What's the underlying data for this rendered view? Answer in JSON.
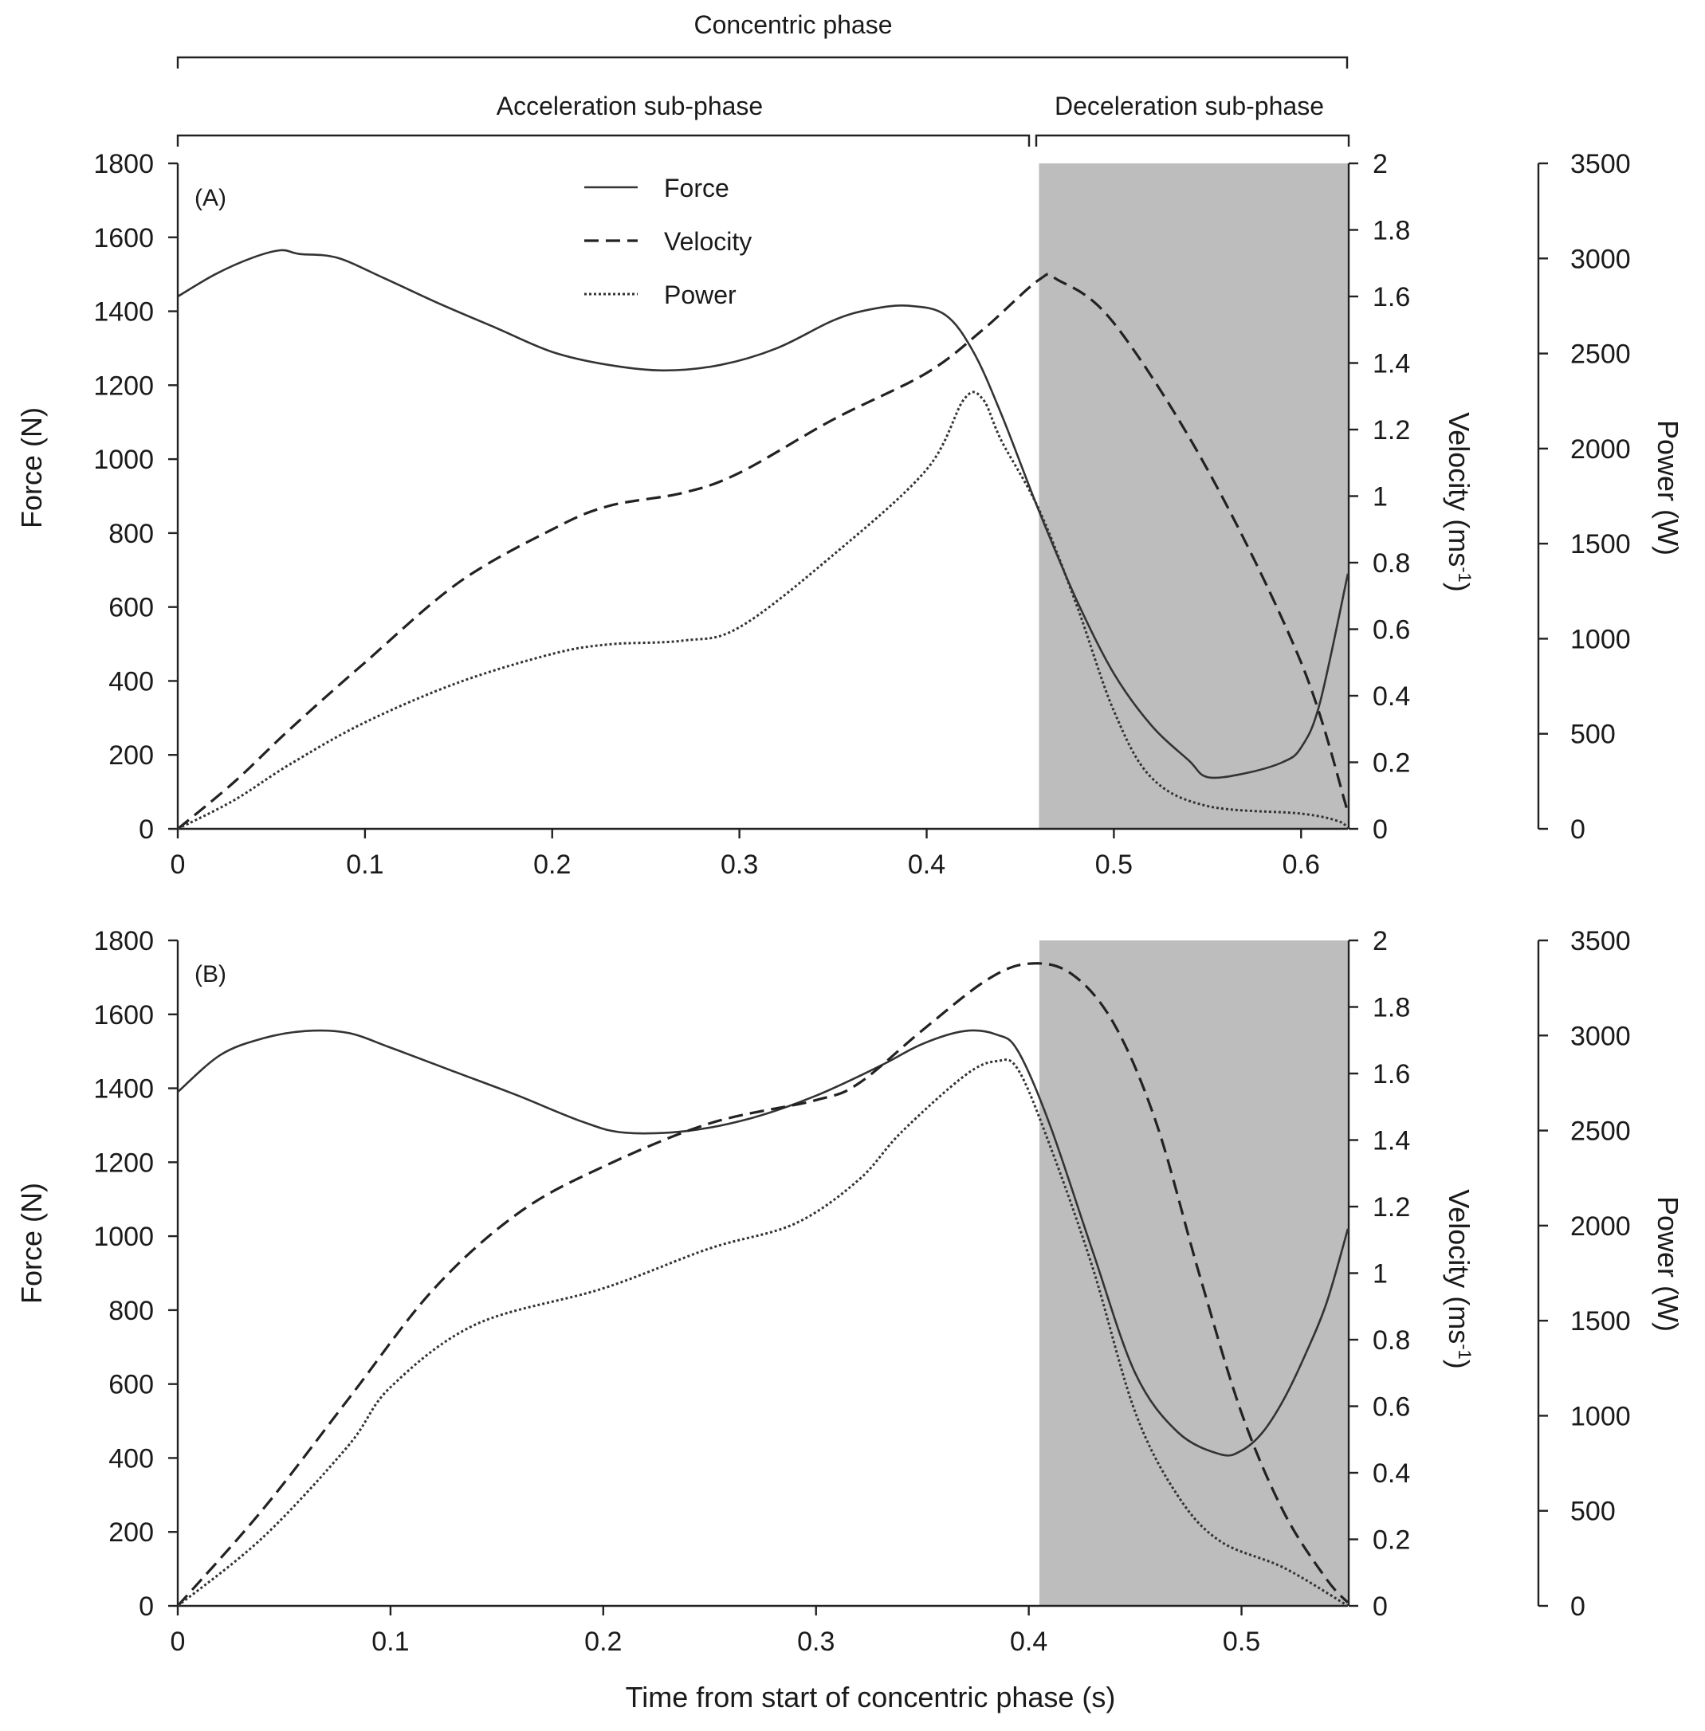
{
  "phases": {
    "concentric": "Concentric phase",
    "acceleration": "Acceleration sub-phase",
    "deceleration": "Deceleration sub-phase"
  },
  "legend": [
    {
      "name": "Force",
      "style": "solid"
    },
    {
      "name": "Velocity",
      "style": "dashed"
    },
    {
      "name": "Power",
      "style": "dotted"
    }
  ],
  "xlabel": "Time from start of concentric phase (s)",
  "ylabel_force": "Force (N)",
  "ylabel_velocity_main": "Velocity (ms",
  "ylabel_velocity_sup": "-1",
  "ylabel_velocity_end": ")",
  "ylabel_power": "Power (W)",
  "colors": {
    "shade": "#bdbdbd",
    "line": "#222222"
  },
  "chart_data": [
    {
      "type": "line",
      "panel": "(A)",
      "xlim": [
        0,
        0.625
      ],
      "xticks": [
        0,
        0.1,
        0.2,
        0.3,
        0.4,
        0.5,
        0.6
      ],
      "xtick_labels": [
        "0",
        "0.1",
        "0.2",
        "0.3",
        "0.4",
        "0.5",
        "0.6"
      ],
      "ylim_force": [
        0,
        1800
      ],
      "yticks_force": [
        0,
        200,
        400,
        600,
        800,
        1000,
        1200,
        1400,
        1600,
        1800
      ],
      "ylim_velocity": [
        0,
        2
      ],
      "yticks_velocity": [
        "0",
        "0.2",
        "0.4",
        "0.6",
        "0.8",
        "1",
        "1.2",
        "1.4",
        "1.6",
        "1.8",
        "2"
      ],
      "ylim_power": [
        0,
        3500
      ],
      "yticks_power": [
        0,
        500,
        1000,
        1500,
        2000,
        2500,
        3000,
        3500
      ],
      "deceleration_start": 0.46,
      "series": [
        {
          "name": "Force",
          "axis": "force",
          "x": [
            0,
            0.02,
            0.04,
            0.055,
            0.065,
            0.085,
            0.11,
            0.14,
            0.17,
            0.2,
            0.23,
            0.26,
            0.29,
            0.32,
            0.35,
            0.37,
            0.39,
            0.41,
            0.425,
            0.44,
            0.46,
            0.48,
            0.5,
            0.52,
            0.54,
            0.55,
            0.57,
            0.59,
            0.6,
            0.61,
            0.625
          ],
          "y": [
            1440,
            1500,
            1545,
            1565,
            1555,
            1545,
            1490,
            1420,
            1355,
            1290,
            1255,
            1240,
            1255,
            1300,
            1375,
            1405,
            1415,
            1390,
            1290,
            1120,
            860,
            620,
            420,
            280,
            185,
            140,
            150,
            180,
            220,
            340,
            690
          ]
        },
        {
          "name": "Velocity",
          "axis": "velocity",
          "x": [
            0,
            0.03,
            0.06,
            0.1,
            0.15,
            0.2,
            0.23,
            0.27,
            0.3,
            0.35,
            0.4,
            0.43,
            0.46,
            0.47,
            0.5,
            0.55,
            0.6,
            0.625
          ],
          "y": [
            0,
            0.14,
            0.3,
            0.5,
            0.74,
            0.9,
            0.97,
            1.01,
            1.07,
            1.23,
            1.37,
            1.5,
            1.65,
            1.65,
            1.52,
            1.08,
            0.5,
            0.05
          ]
        },
        {
          "name": "Power",
          "axis": "power",
          "x": [
            0,
            0.03,
            0.06,
            0.1,
            0.15,
            0.2,
            0.23,
            0.27,
            0.3,
            0.35,
            0.4,
            0.42,
            0.43,
            0.44,
            0.46,
            0.48,
            0.5,
            0.52,
            0.55,
            0.6,
            0.62,
            0.625
          ],
          "y": [
            0,
            150,
            340,
            560,
            770,
            920,
            970,
            990,
            1060,
            1440,
            1890,
            2260,
            2260,
            2040,
            1680,
            1180,
            620,
            270,
            120,
            80,
            40,
            0
          ]
        }
      ]
    },
    {
      "type": "line",
      "panel": "(B)",
      "xlim": [
        0,
        0.55
      ],
      "xticks": [
        0,
        0.1,
        0.2,
        0.3,
        0.4,
        0.5
      ],
      "xtick_labels": [
        "0",
        "0.1",
        "0.2",
        "0.3",
        "0.4",
        "0.5"
      ],
      "ylim_force": [
        0,
        1800
      ],
      "yticks_force": [
        0,
        200,
        400,
        600,
        800,
        1000,
        1200,
        1400,
        1600,
        1800
      ],
      "ylim_velocity": [
        0,
        2
      ],
      "yticks_velocity": [
        "0",
        "0.2",
        "0.4",
        "0.6",
        "0.8",
        "1",
        "1.2",
        "1.4",
        "1.6",
        "1.8",
        "2"
      ],
      "ylim_power": [
        0,
        3500
      ],
      "yticks_power": [
        0,
        500,
        1000,
        1500,
        2000,
        2500,
        3000,
        3500
      ],
      "deceleration_start": 0.405,
      "series": [
        {
          "name": "Force",
          "axis": "force",
          "x": [
            0,
            0.02,
            0.04,
            0.06,
            0.08,
            0.1,
            0.13,
            0.16,
            0.19,
            0.21,
            0.24,
            0.27,
            0.3,
            0.33,
            0.35,
            0.37,
            0.385,
            0.395,
            0.41,
            0.43,
            0.45,
            0.47,
            0.49,
            0.5,
            0.51,
            0.52,
            0.53,
            0.54,
            0.55
          ],
          "y": [
            1390,
            1490,
            1535,
            1555,
            1550,
            1510,
            1445,
            1380,
            1310,
            1280,
            1285,
            1320,
            1380,
            1460,
            1520,
            1555,
            1545,
            1500,
            1300,
            960,
            630,
            470,
            410,
            420,
            470,
            560,
            680,
            820,
            1020
          ]
        },
        {
          "name": "Velocity",
          "axis": "velocity",
          "x": [
            0,
            0.04,
            0.08,
            0.12,
            0.16,
            0.2,
            0.25,
            0.3,
            0.32,
            0.35,
            0.38,
            0.4,
            0.42,
            0.44,
            0.46,
            0.48,
            0.5,
            0.52,
            0.54,
            0.55
          ],
          "y": [
            0,
            0.29,
            0.62,
            0.95,
            1.18,
            1.32,
            1.45,
            1.52,
            1.57,
            1.73,
            1.88,
            1.93,
            1.9,
            1.75,
            1.45,
            1.0,
            0.58,
            0.28,
            0.08,
            0.01
          ]
        },
        {
          "name": "Power",
          "axis": "power",
          "x": [
            0,
            0.04,
            0.08,
            0.1,
            0.14,
            0.2,
            0.25,
            0.29,
            0.32,
            0.34,
            0.37,
            0.385,
            0.395,
            0.41,
            0.43,
            0.45,
            0.47,
            0.49,
            0.52,
            0.55
          ],
          "y": [
            0,
            360,
            840,
            1150,
            1480,
            1670,
            1880,
            2010,
            2240,
            2490,
            2790,
            2865,
            2820,
            2420,
            1780,
            1020,
            580,
            340,
            200,
            0
          ]
        }
      ]
    }
  ]
}
